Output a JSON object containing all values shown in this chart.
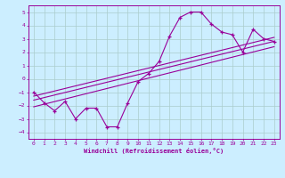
{
  "xlabel": "Windchill (Refroidissement éolien,°C)",
  "bg_color": "#cceeff",
  "grid_color": "#aacccc",
  "line_color": "#990099",
  "xlim": [
    -0.5,
    23.5
  ],
  "ylim": [
    -4.5,
    5.5
  ],
  "yticks": [
    -4,
    -3,
    -2,
    -1,
    0,
    1,
    2,
    3,
    4,
    5
  ],
  "xticks": [
    0,
    1,
    2,
    3,
    4,
    5,
    6,
    7,
    8,
    9,
    10,
    11,
    12,
    13,
    14,
    15,
    16,
    17,
    18,
    19,
    20,
    21,
    22,
    23
  ],
  "main_x": [
    0,
    1,
    2,
    3,
    4,
    5,
    6,
    7,
    8,
    9,
    10,
    11,
    12,
    13,
    14,
    15,
    16,
    17,
    18,
    19,
    20,
    21,
    22,
    23
  ],
  "main_y": [
    -1.0,
    -1.8,
    -2.4,
    -1.7,
    -3.0,
    -2.2,
    -2.2,
    -3.6,
    -3.6,
    -1.8,
    -0.2,
    0.4,
    1.3,
    3.2,
    4.6,
    5.0,
    5.0,
    4.1,
    3.5,
    3.3,
    2.0,
    3.7,
    3.0,
    2.8
  ],
  "line1_x": [
    0,
    23
  ],
  "line1_y": [
    -1.3,
    3.1
  ],
  "line2_x": [
    0,
    23
  ],
  "line2_y": [
    -1.6,
    2.8
  ],
  "line3_x": [
    0,
    23
  ],
  "line3_y": [
    -2.1,
    2.4
  ],
  "tick_fontsize": 4.5,
  "xlabel_fontsize": 5.0
}
